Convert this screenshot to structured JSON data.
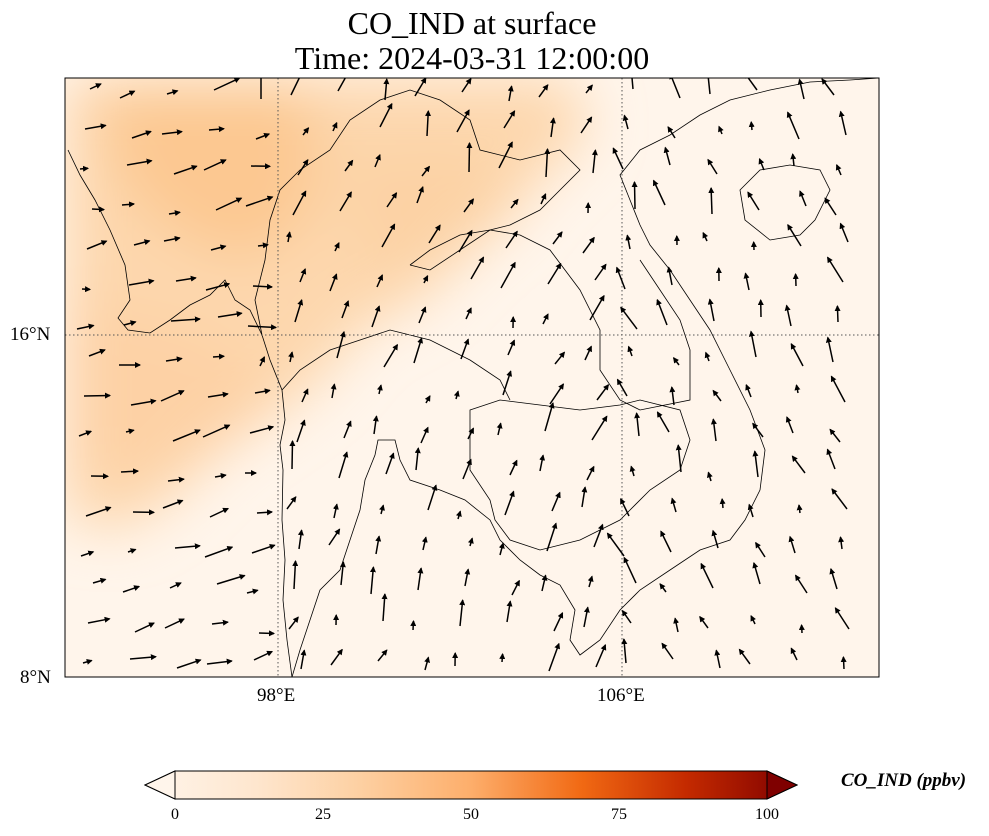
{
  "title": {
    "line1": "CO_IND at surface",
    "line2": "Time: 2024-03-31 12:00:00"
  },
  "map": {
    "region": "Indochina / Southeast Asia",
    "lon_range": [
      93,
      112
    ],
    "lat_range": [
      8,
      22
    ],
    "lat_ticks": [
      {
        "value": 16,
        "label": "16°N"
      },
      {
        "value": 8,
        "label": "8°N"
      }
    ],
    "lon_ticks": [
      {
        "value": 98,
        "label": "98°E"
      },
      {
        "value": 106,
        "label": "106°E"
      }
    ],
    "gridlines": "dotted",
    "overlay": "wind vectors (arrows)",
    "field_pattern": "higher concentrations (~15-20 ppbv) over Myanmar, northern Thailand, Laos and the Andaman Sea; low (~0-5 ppbv) elsewhere"
  },
  "colorbar": {
    "label": "CO_IND (ppbv)",
    "colormap": "Oranges",
    "ticks": [
      "0",
      "25",
      "50",
      "75",
      "100"
    ],
    "range": [
      0,
      100
    ],
    "extend": "both",
    "colors": [
      "#fff5eb",
      "#fdd8b2",
      "#fdae6b",
      "#f16913",
      "#d94801",
      "#a63603",
      "#7f2704"
    ]
  }
}
